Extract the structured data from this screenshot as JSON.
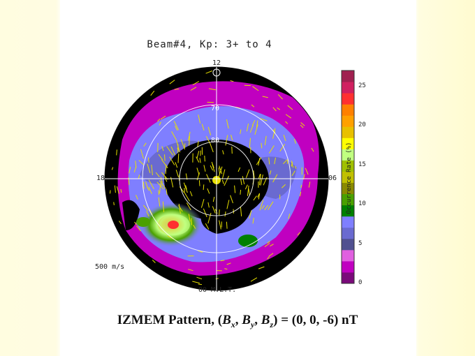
{
  "title": "Beam#4, Kp: 3+ to 4",
  "labels": {
    "top": "12",
    "left": "18",
    "right": "06",
    "bottom": "00 M.L.T.",
    "ring70": "70",
    "ring80": "80",
    "velocity_scale": "500 m/s"
  },
  "colorbar": {
    "label": "Occurrence Rate (%)",
    "ticks": [
      "25",
      "20",
      "15",
      "10",
      "5",
      "0"
    ],
    "range": [
      0,
      27
    ],
    "colors": [
      "#7a0a7a",
      "#c000c0",
      "#e060e0",
      "#505090",
      "#6a6ad0",
      "#7f7fff",
      "#008000",
      "#4aa000",
      "#8a8a00",
      "#c0c000",
      "#a0c000",
      "#c0ff80",
      "#ffff00",
      "#e8c000",
      "#ffa000",
      "#ff8000",
      "#ff3030",
      "#d02060",
      "#a02050"
    ]
  },
  "caption": {
    "prefix": "IZMEM Pattern, (",
    "b": "B",
    "x": "x",
    "y": "y",
    "z": "z",
    "suffix": ") = (0, 0, -6) nT"
  }
}
